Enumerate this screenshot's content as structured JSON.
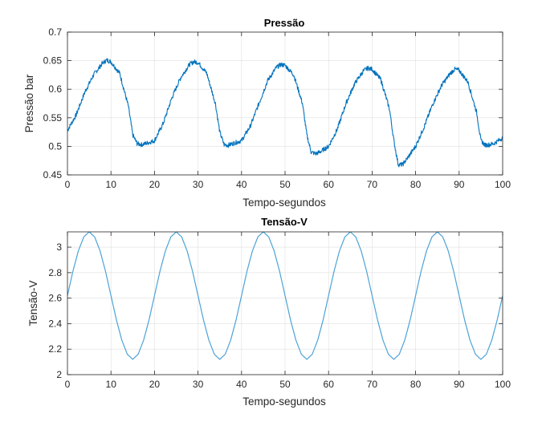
{
  "chart_data": [
    {
      "type": "line",
      "title": "Pressão",
      "xlabel": "Tempo-segundos",
      "ylabel": "Pressão bar",
      "xlim": [
        0,
        100
      ],
      "ylim": [
        0.45,
        0.7
      ],
      "xticks": [
        0,
        10,
        20,
        30,
        40,
        50,
        60,
        70,
        80,
        90,
        100
      ],
      "yticks": [
        0.45,
        0.5,
        0.55,
        0.6,
        0.65,
        0.7
      ],
      "grid": true,
      "color": "#0072BD",
      "series": [
        {
          "x": [
            0,
            2,
            4,
            6,
            8,
            9,
            10,
            12,
            14,
            15,
            16,
            17,
            18,
            20,
            22,
            24,
            26,
            28,
            29,
            30,
            32,
            34,
            35,
            36,
            37,
            38,
            40,
            42,
            44,
            46,
            48,
            49,
            50,
            52,
            54,
            55,
            56,
            57,
            58,
            60,
            62,
            64,
            66,
            68,
            69,
            70,
            72,
            74,
            75,
            76,
            77,
            78,
            80,
            82,
            84,
            86,
            88,
            89,
            90,
            92,
            94,
            95,
            96,
            97,
            98,
            100
          ],
          "y": [
            0.528,
            0.555,
            0.595,
            0.625,
            0.645,
            0.651,
            0.648,
            0.628,
            0.57,
            0.52,
            0.505,
            0.503,
            0.505,
            0.51,
            0.54,
            0.585,
            0.62,
            0.643,
            0.648,
            0.647,
            0.628,
            0.575,
            0.525,
            0.503,
            0.502,
            0.505,
            0.51,
            0.535,
            0.575,
            0.615,
            0.638,
            0.643,
            0.642,
            0.625,
            0.575,
            0.52,
            0.49,
            0.487,
            0.49,
            0.5,
            0.53,
            0.575,
            0.61,
            0.632,
            0.637,
            0.635,
            0.617,
            0.565,
            0.51,
            0.468,
            0.468,
            0.478,
            0.5,
            0.535,
            0.575,
            0.607,
            0.628,
            0.635,
            0.633,
            0.613,
            0.56,
            0.51,
            0.502,
            0.503,
            0.505,
            0.515
          ]
        }
      ]
    },
    {
      "type": "line",
      "title": "Tensão-V",
      "xlabel": "Tempo-segundos",
      "ylabel": "Tensão-V",
      "xlim": [
        0,
        100
      ],
      "ylim": [
        2,
        3.12
      ],
      "xticks": [
        0,
        10,
        20,
        30,
        40,
        50,
        60,
        70,
        80,
        90,
        100
      ],
      "yticks": [
        2,
        2.2,
        2.4,
        2.6,
        2.8,
        3
      ],
      "grid": true,
      "color": "#4DA3D6",
      "series": [
        {
          "x": [
            0,
            1.25,
            2.5,
            3.75,
            5,
            6.25,
            7.5,
            8.75,
            10,
            11.25,
            12.5,
            13.75,
            15,
            16.25,
            17.5,
            18.75,
            20,
            21.25,
            22.5,
            23.75,
            25,
            26.25,
            27.5,
            28.75,
            30,
            31.25,
            32.5,
            33.75,
            35,
            36.25,
            37.5,
            38.75,
            40,
            41.25,
            42.5,
            43.75,
            45,
            46.25,
            47.5,
            48.75,
            50,
            51.25,
            52.5,
            53.75,
            55,
            56.25,
            57.5,
            58.75,
            60,
            61.25,
            62.5,
            63.75,
            65,
            66.25,
            67.5,
            68.75,
            70,
            71.25,
            72.5,
            73.75,
            75,
            76.25,
            77.5,
            78.75,
            80,
            81.25,
            82.5,
            83.75,
            85,
            86.25,
            87.5,
            88.75,
            90,
            91.25,
            92.5,
            93.75,
            95,
            96.25,
            97.5,
            98.75,
            100
          ],
          "y": [
            2.62,
            2.81,
            2.97,
            3.08,
            3.12,
            3.08,
            2.97,
            2.81,
            2.62,
            2.43,
            2.27,
            2.16,
            2.12,
            2.16,
            2.27,
            2.43,
            2.62,
            2.81,
            2.97,
            3.08,
            3.12,
            3.08,
            2.97,
            2.81,
            2.62,
            2.43,
            2.27,
            2.16,
            2.12,
            2.16,
            2.27,
            2.43,
            2.62,
            2.81,
            2.97,
            3.08,
            3.12,
            3.08,
            2.97,
            2.81,
            2.62,
            2.43,
            2.27,
            2.16,
            2.12,
            2.16,
            2.27,
            2.43,
            2.62,
            2.81,
            2.97,
            3.08,
            3.12,
            3.08,
            2.97,
            2.81,
            2.62,
            2.43,
            2.27,
            2.16,
            2.12,
            2.16,
            2.27,
            2.43,
            2.62,
            2.81,
            2.97,
            3.08,
            3.12,
            3.08,
            2.97,
            2.81,
            2.62,
            2.43,
            2.27,
            2.16,
            2.12,
            2.16,
            2.27,
            2.43,
            2.62
          ]
        }
      ]
    }
  ]
}
